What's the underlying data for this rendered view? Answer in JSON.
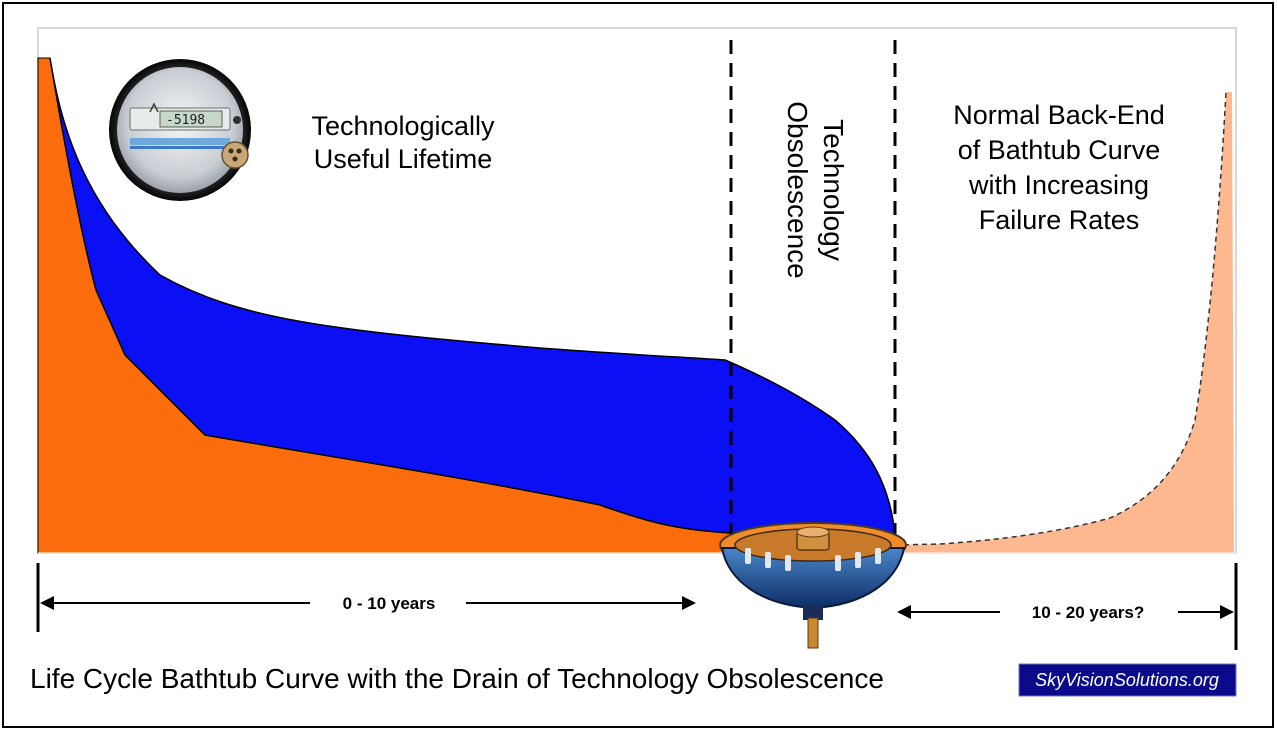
{
  "diagram": {
    "labels": {
      "useful_lifetime_line1": "Technologically",
      "useful_lifetime_line2": "Useful Lifetime",
      "obsolescence_line1": "Technology",
      "obsolescence_line2": "Obsolescence",
      "backend_line1": "Normal Back-End",
      "backend_line2": "of Bathtub Curve",
      "backend_line3": "with Increasing",
      "backend_line4": "Failure Rates",
      "span_left": "0  - 10 years",
      "span_right": "10 - 20 years?"
    },
    "meter_display": "-5198",
    "caption": "Life Cycle Bathtub Curve with the Drain of Technology Obsolescence",
    "badge": "SkyVisionSolutions.org",
    "colors": {
      "orange": "#fb6d0c",
      "blue": "#0a10f3",
      "peach": "#fdb88f",
      "badge_bg": "#0a0a8a"
    }
  }
}
